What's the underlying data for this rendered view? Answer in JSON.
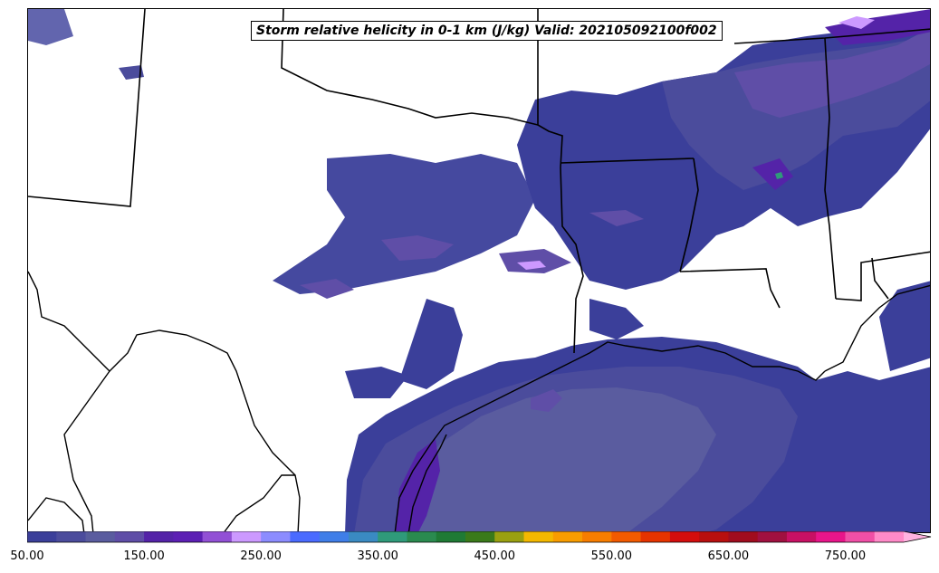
{
  "map": {
    "title": "Storm relative helicity in 0-1 km (J/kg) Valid: 202105092100f002",
    "field": "storm-relative-helicity"
  },
  "colorbar": {
    "min": 50,
    "max": 800,
    "step": 25,
    "extend": "max",
    "tick_labels": [
      "50.00",
      "150.00",
      "250.00",
      "350.00",
      "450.00",
      "550.00",
      "650.00",
      "750.00"
    ],
    "colors": [
      "#3b3f9a",
      "#4b4c9c",
      "#5a5c9f",
      "#5f4ea7",
      "#5423a8",
      "#5c1fb4",
      "#9250d5",
      "#cc99ff",
      "#8c8cff",
      "#4a6bff",
      "#3f7ee8",
      "#3a8ac2",
      "#2f9a7a",
      "#2a8a4f",
      "#1f7a35",
      "#3a7a1a",
      "#9aa010",
      "#f4b800",
      "#f89c00",
      "#f77d00",
      "#f25a00",
      "#e63300",
      "#d40d0d",
      "#b80f0f",
      "#a00c1e",
      "#a01040",
      "#c81064",
      "#e8158a",
      "#f04fa6",
      "#ff8ac8"
    ],
    "extend_color": "#ffb3e0"
  }
}
